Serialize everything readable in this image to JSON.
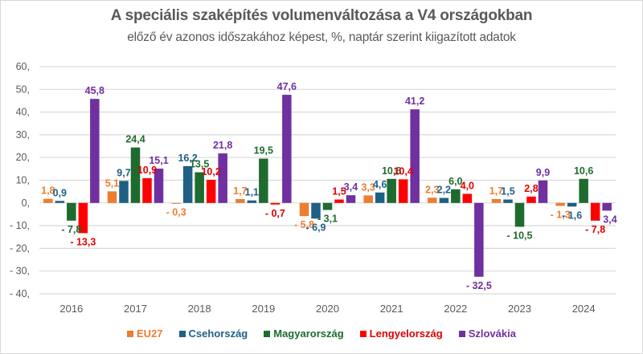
{
  "chart_data": {
    "type": "bar",
    "title": "A speciális szaképítés volumenváltozása a V4 országokban",
    "subtitle": "előző év azonos időszakához képest, %, naptár szerint kiigazított adatok",
    "xlabel": "",
    "ylabel": "",
    "categories": [
      "2016",
      "2017",
      "2018",
      "2019",
      "2020",
      "2021",
      "2022",
      "2023",
      "2024"
    ],
    "ylim": [
      -40,
      60
    ],
    "yticks": [
      60,
      50,
      40,
      30,
      20,
      10,
      0,
      -10,
      -20,
      -30,
      -40
    ],
    "ytick_labels": [
      "60,",
      "50,",
      "40,",
      "30,",
      "20,",
      "10,",
      "0,",
      "- 10,",
      "- 20,",
      "- 30,",
      "- 40,"
    ],
    "grid": true,
    "legend_position": "bottom",
    "series": [
      {
        "name": "EU27",
        "color": "#ED7D31",
        "values": [
          1.8,
          5.1,
          -0.3,
          1.7,
          -5.8,
          3.3,
          2.3,
          1.7,
          -1.3
        ],
        "labels": [
          "1,8",
          "5,1",
          "- 0,3",
          "1,7",
          "- 5,8",
          "3,3",
          "2,3",
          "1,7",
          "- 1,3"
        ]
      },
      {
        "name": "Csehország",
        "color": "#1F5F84",
        "values": [
          0.9,
          9.7,
          16.2,
          1.1,
          -6.9,
          4.6,
          2.2,
          1.5,
          -1.6
        ],
        "labels": [
          "0,9",
          "9,7",
          "16,2",
          "1,1",
          "- 6,9",
          "4,6",
          "2,2",
          "1,5",
          "- 1,6"
        ]
      },
      {
        "name": "Magyarország",
        "color": "#1E6B2E",
        "values": [
          -7.8,
          24.4,
          13.5,
          19.5,
          -3.1,
          10.6,
          6.0,
          -10.5,
          10.6
        ],
        "labels": [
          "- 7,8",
          "24,4",
          "13,5",
          "19,5",
          "- 3,1",
          "10,6",
          "6,0",
          "- 10,5",
          "10,6"
        ]
      },
      {
        "name": "Lengyelország",
        "color": "#FF0000",
        "values": [
          -13.3,
          10.9,
          10.2,
          -0.7,
          1.5,
          10.4,
          4.0,
          2.8,
          -7.8
        ],
        "labels": [
          "- 13,3",
          "10,9",
          "10,2",
          "- 0,7",
          "1,5",
          "10,4",
          "4,0",
          "2,8",
          "- 7,8"
        ]
      },
      {
        "name": "Szlovákia",
        "color": "#7030A0",
        "values": [
          45.8,
          15.1,
          21.8,
          47.6,
          3.4,
          41.2,
          -32.5,
          9.9,
          -3.4
        ],
        "labels": [
          "45,8",
          "15,1",
          "21,8",
          "47,6",
          "3,4",
          "41,2",
          "- 32,5",
          "9,9",
          "- 3,4"
        ]
      }
    ]
  },
  "colors": {
    "gridline": "#d9d9d9",
    "axis_text": "#595959",
    "title_text": "#595959",
    "label_colors": [
      "#ED7D31",
      "#1F5F84",
      "#1E6B2E",
      "#E00000",
      "#7030A0"
    ]
  }
}
